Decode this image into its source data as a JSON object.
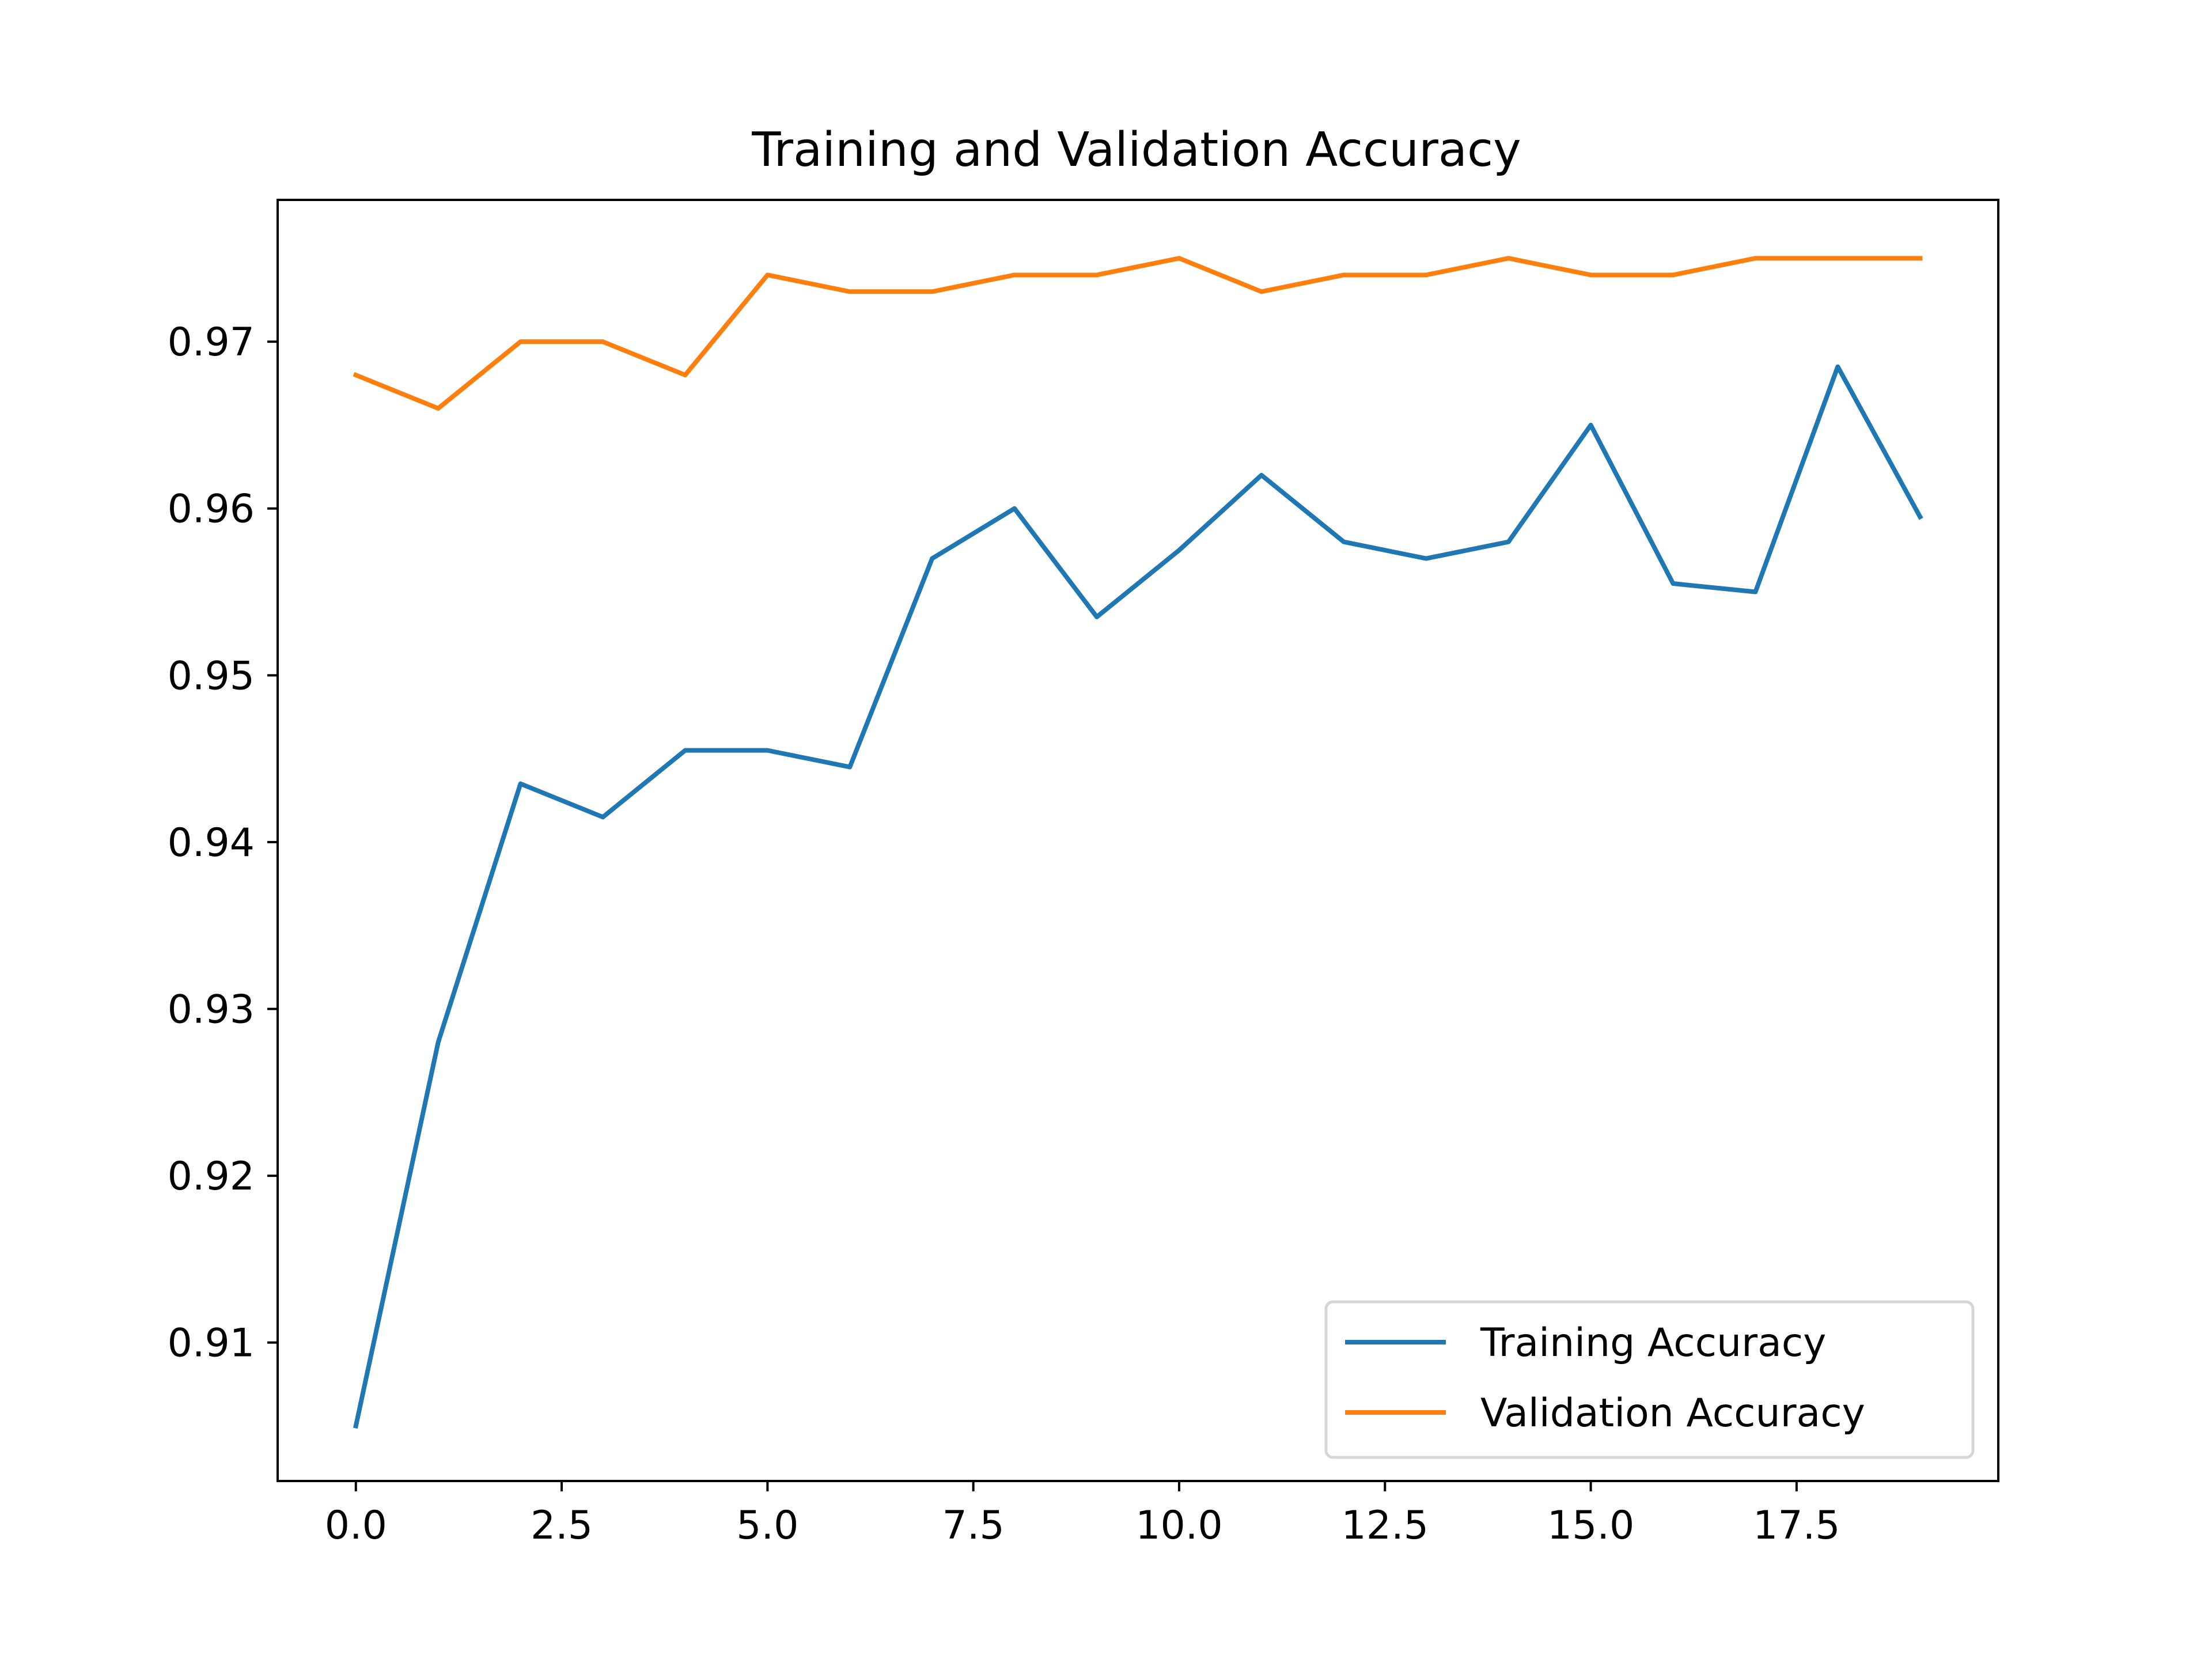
{
  "chart_data": {
    "type": "line",
    "title": "Training and Validation Accuracy",
    "xlabel": "",
    "ylabel": "",
    "xlim": [
      -0.95,
      19.95
    ],
    "ylim": [
      0.9017,
      0.9785
    ],
    "xticks": [
      0.0,
      2.5,
      5.0,
      7.5,
      10.0,
      12.5,
      15.0,
      17.5
    ],
    "xtick_labels": [
      "0.0",
      "2.5",
      "5.0",
      "7.5",
      "10.0",
      "12.5",
      "15.0",
      "17.5"
    ],
    "yticks": [
      0.91,
      0.92,
      0.93,
      0.94,
      0.95,
      0.96,
      0.97
    ],
    "ytick_labels": [
      "0.91",
      "0.92",
      "0.93",
      "0.94",
      "0.95",
      "0.96",
      "0.97"
    ],
    "grid": false,
    "legend_position": "lower-right",
    "x": [
      0,
      1,
      2,
      3,
      4,
      5,
      6,
      7,
      8,
      9,
      10,
      11,
      12,
      13,
      14,
      15,
      16,
      17,
      18,
      19
    ],
    "series": [
      {
        "name": "Training Accuracy",
        "color": "#1f77b4",
        "values": [
          0.905,
          0.928,
          0.9435,
          0.9415,
          0.9455,
          0.9455,
          0.9445,
          0.957,
          0.96,
          0.9535,
          0.9575,
          0.962,
          0.958,
          0.957,
          0.958,
          0.965,
          0.9555,
          0.955,
          0.9685,
          0.9595
        ]
      },
      {
        "name": "Validation Accuracy",
        "color": "#ff7f0e",
        "values": [
          0.968,
          0.966,
          0.97,
          0.97,
          0.968,
          0.974,
          0.973,
          0.973,
          0.974,
          0.974,
          0.975,
          0.973,
          0.974,
          0.974,
          0.975,
          0.974,
          0.974,
          0.975,
          0.975,
          0.975
        ]
      }
    ]
  }
}
